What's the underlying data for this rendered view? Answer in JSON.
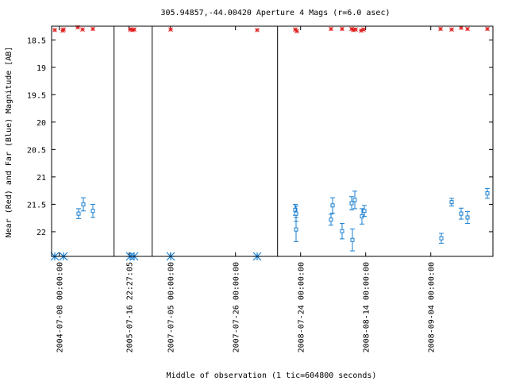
{
  "chart_data": {
    "type": "scatter",
    "title": "305.94857,-44.00420   Aperture 4 Mags (r=6.0 asec)",
    "xlabel": "Middle of observation (1 tic=604800 seconds)",
    "ylabel": "Near (Red) and Far (Blue) Magnitude [AB]",
    "ylim": [
      22.45,
      18.25
    ],
    "y_ticks": [
      "18.5",
      "19",
      "19.5",
      "20",
      "20.5",
      "21",
      "21.5",
      "22"
    ],
    "x_ticks": [
      {
        "label": "2004-07-08 00:00:00",
        "x": 9.7
      },
      {
        "label": "2005-07-16 22:27:05",
        "x": 97.7
      },
      {
        "label": "2007-07-05 00:00:00",
        "x": 149.7
      },
      {
        "label": "2007-07-26 00:00:00",
        "x": 231.7
      },
      {
        "label": "2008-07-24 00:00:00",
        "x": 313.7
      },
      {
        "label": "2008-08-14 00:00:00",
        "x": 395.7
      },
      {
        "label": "2008-09-04 00:00:00",
        "x": 477.7
      }
    ],
    "segment_breaks": [
      78.7,
      126.7,
      284.7
    ],
    "xlim": [
      0,
      556
    ],
    "series": [
      {
        "color": "#e02020",
        "marker": "star",
        "points": [
          {
            "x": 4,
            "y": 18.32
          },
          {
            "x": 14,
            "y": 18.33
          },
          {
            "x": 15,
            "y": 18.31
          },
          {
            "x": 33,
            "y": 18.27
          },
          {
            "x": 39,
            "y": 18.31
          },
          {
            "x": 52,
            "y": 18.3
          },
          {
            "x": 99,
            "y": 18.31
          },
          {
            "x": 102,
            "y": 18.32
          },
          {
            "x": 104,
            "y": 18.31
          },
          {
            "x": 150,
            "y": 18.31
          },
          {
            "x": 259,
            "y": 18.32
          },
          {
            "x": 307,
            "y": 18.31
          },
          {
            "x": 309,
            "y": 18.34
          },
          {
            "x": 352,
            "y": 18.3
          },
          {
            "x": 366,
            "y": 18.3
          },
          {
            "x": 378,
            "y": 18.3
          },
          {
            "x": 380,
            "y": 18.32
          },
          {
            "x": 383,
            "y": 18.31
          },
          {
            "x": 390,
            "y": 18.33
          },
          {
            "x": 393,
            "y": 18.31
          },
          {
            "x": 490,
            "y": 18.3
          },
          {
            "x": 504,
            "y": 18.31
          },
          {
            "x": 516,
            "y": 18.28
          },
          {
            "x": 524,
            "y": 18.3
          },
          {
            "x": 549,
            "y": 18.3
          }
        ]
      },
      {
        "color": "#1a7fd0",
        "marker": "square",
        "points": [
          {
            "x": 34,
            "y": 21.67,
            "err": 0.09
          },
          {
            "x": 40,
            "y": 21.5,
            "err": 0.12
          },
          {
            "x": 52,
            "y": 21.62,
            "err": 0.12
          },
          {
            "x": 307,
            "y": 21.6,
            "err": 0.1
          },
          {
            "x": 308,
            "y": 21.67,
            "err": 0.14
          },
          {
            "x": 308,
            "y": 21.96,
            "err": 0.22
          },
          {
            "x": 352,
            "y": 21.78,
            "err": 0.1
          },
          {
            "x": 354,
            "y": 21.52,
            "err": 0.14
          },
          {
            "x": 366,
            "y": 21.99,
            "err": 0.14
          },
          {
            "x": 378,
            "y": 21.48,
            "err": 0.12
          },
          {
            "x": 379,
            "y": 22.15,
            "err": 0.2
          },
          {
            "x": 382,
            "y": 21.42,
            "err": 0.16
          },
          {
            "x": 391,
            "y": 21.72,
            "err": 0.14
          },
          {
            "x": 394,
            "y": 21.62,
            "err": 0.1
          },
          {
            "x": 491,
            "y": 22.12,
            "err": 0.09
          },
          {
            "x": 504,
            "y": 21.46,
            "err": 0.07
          },
          {
            "x": 516,
            "y": 21.67,
            "err": 0.1
          },
          {
            "x": 524,
            "y": 21.74,
            "err": 0.11
          },
          {
            "x": 549,
            "y": 21.3,
            "err": 0.09
          }
        ]
      },
      {
        "color": "#1a7fd0",
        "marker": "asterisk",
        "points": [
          {
            "x": 4,
            "y": 22.45
          },
          {
            "x": 15,
            "y": 22.45
          },
          {
            "x": 99,
            "y": 22.45
          },
          {
            "x": 104,
            "y": 22.45
          },
          {
            "x": 150,
            "y": 22.45
          },
          {
            "x": 259,
            "y": 22.45
          }
        ]
      }
    ]
  }
}
